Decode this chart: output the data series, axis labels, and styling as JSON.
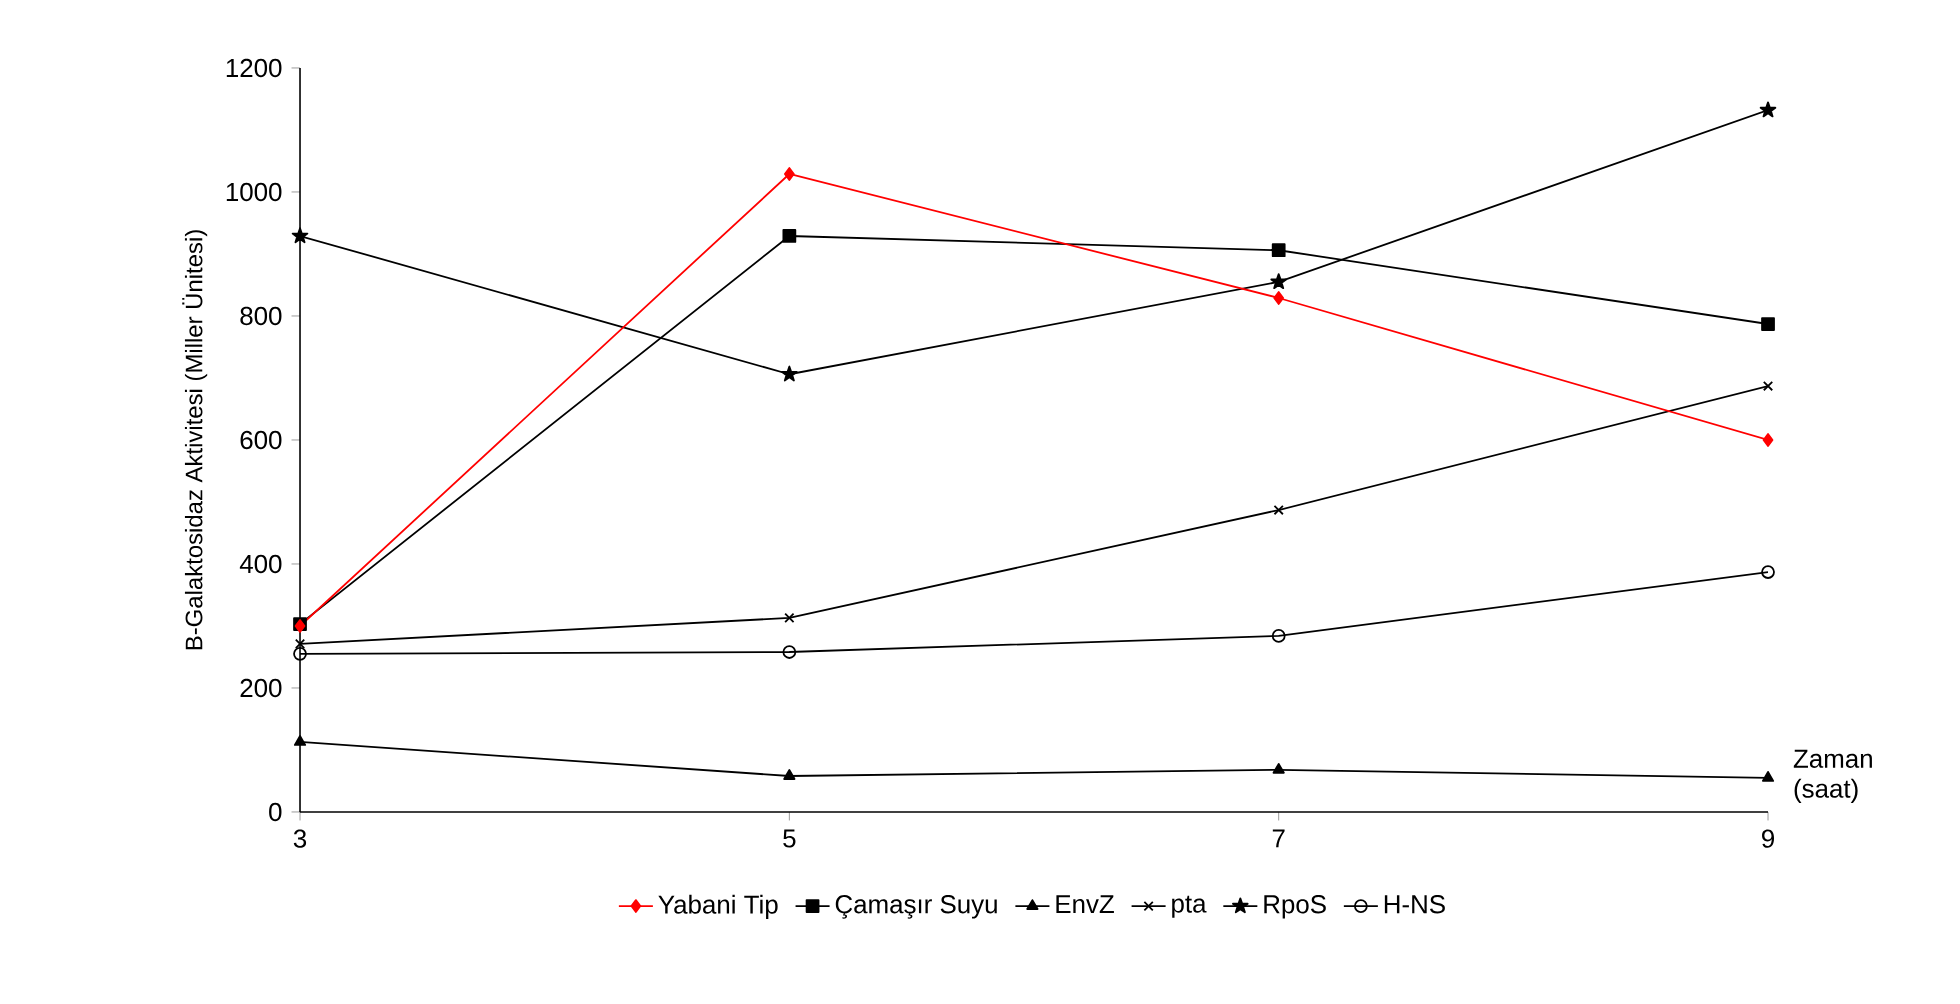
{
  "chart_data": {
    "type": "line",
    "xlabel": "Zaman (saat)",
    "ylabel": "B-Galaktosidaz Aktivitesi (Miller Ünitesi)",
    "x": [
      3,
      5,
      7,
      9
    ],
    "xlim": [
      3,
      9
    ],
    "xticks": [
      3,
      5,
      7,
      9
    ],
    "ylim": [
      0,
      1200
    ],
    "yticks": [
      0,
      200,
      400,
      600,
      800,
      1000,
      1200
    ],
    "legend": "bottom",
    "grid": false,
    "line_style": "solid",
    "series": [
      {
        "name": "Yabani Tip",
        "color": "#ff0000",
        "marker": "diamond",
        "values": [
          300,
          1029,
          829,
          600
        ]
      },
      {
        "name": "Çamaşır Suyu",
        "color": "#000000",
        "marker": "square",
        "values": [
          303,
          929,
          906,
          787
        ]
      },
      {
        "name": "EnvZ",
        "color": "#000000",
        "marker": "triangle",
        "values": [
          113,
          58,
          68,
          55
        ]
      },
      {
        "name": "pta",
        "color": "#000000",
        "marker": "cross",
        "values": [
          271,
          313,
          487,
          687
        ]
      },
      {
        "name": "RpoS",
        "color": "#000000",
        "marker": "star",
        "values": [
          929,
          706,
          855,
          1132
        ]
      },
      {
        "name": "H-NS",
        "color": "#000000",
        "marker": "circle",
        "values": [
          255,
          258,
          284,
          387
        ]
      }
    ]
  }
}
